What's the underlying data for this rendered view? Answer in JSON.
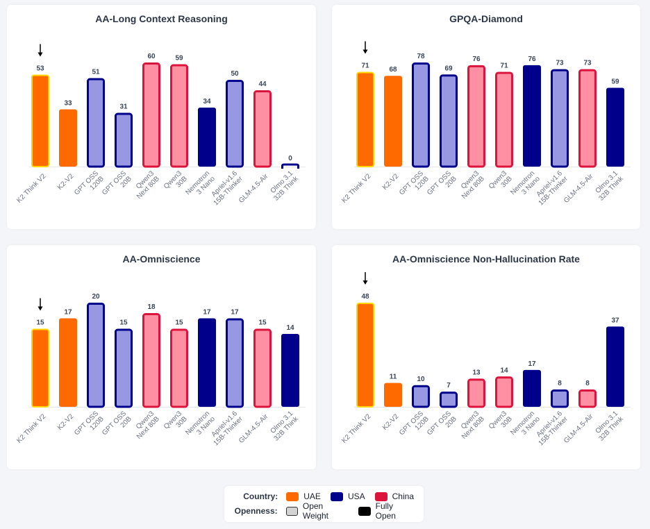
{
  "colors": {
    "UAE": "#ff6a00",
    "USA": "#00008b",
    "China": "#dc143c",
    "USA_light_fill": "#9898e2",
    "China_light_fill": "#ff8fa3",
    "highlight_border": "#ffd700",
    "axis": "#e5e7eb"
  },
  "models": [
    {
      "label": [
        "K2 Think V2"
      ],
      "country": "UAE",
      "openness": "Fully Open",
      "highlight": true
    },
    {
      "label": [
        "K2-V2"
      ],
      "country": "UAE",
      "openness": "Fully Open",
      "highlight": false
    },
    {
      "label": [
        "GPT OSS",
        "120B"
      ],
      "country": "USA",
      "openness": "Open Weight",
      "highlight": false
    },
    {
      "label": [
        "GPT OSS",
        "20B"
      ],
      "country": "USA",
      "openness": "Open Weight",
      "highlight": false
    },
    {
      "label": [
        "Qwen3",
        "Next 80B"
      ],
      "country": "China",
      "openness": "Open Weight",
      "highlight": false
    },
    {
      "label": [
        "Qwen3",
        "30B"
      ],
      "country": "China",
      "openness": "Open Weight",
      "highlight": false
    },
    {
      "label": [
        "Nemotron",
        "3 Nano"
      ],
      "country": "USA",
      "openness": "Fully Open",
      "highlight": false
    },
    {
      "label": [
        "Apriel-v1.6",
        "15B-Thinker"
      ],
      "country": "USA",
      "openness": "Open Weight",
      "highlight": false
    },
    {
      "label": [
        "GLM-4.5-Air"
      ],
      "country": "China",
      "openness": "Open Weight",
      "highlight": false
    },
    {
      "label": [
        "Olmo 3.1",
        "32B Think"
      ],
      "country": "USA",
      "openness": "Fully Open",
      "highlight": false
    }
  ],
  "chart_data": [
    {
      "type": "bar",
      "title": "AA-Long Context Reasoning",
      "categories": [
        "K2 Think V2",
        "K2-V2",
        "GPT OSS 120B",
        "GPT OSS 20B",
        "Qwen3 Next 80B",
        "Qwen3 30B",
        "Nemotron 3 Nano",
        "Apriel-v1.6 15B-Thinker",
        "GLM-4.5-Air",
        "Olmo 3.1 32B Think"
      ],
      "values": [
        53,
        33,
        51,
        31,
        60,
        59,
        34,
        50,
        44,
        0
      ],
      "xlabel": "",
      "ylabel": "",
      "ylim": [
        0,
        60
      ],
      "grid": false,
      "highlight_category": "K2 Think V2",
      "annotation": "down-arrow above K2 Think V2"
    },
    {
      "type": "bar",
      "title": "GPQA-Diamond",
      "categories": [
        "K2 Think V2",
        "K2-V2",
        "GPT OSS 120B",
        "GPT OSS 20B",
        "Qwen3 Next 80B",
        "Qwen3 30B",
        "Nemotron 3 Nano",
        "Apriel-v1.6 15B-Thinker",
        "GLM-4.5-Air",
        "Olmo 3.1 32B Think"
      ],
      "values": [
        71,
        68,
        78,
        69,
        76,
        71,
        76,
        73,
        73,
        59
      ],
      "xlabel": "",
      "ylabel": "",
      "ylim": [
        0,
        78
      ],
      "grid": false,
      "highlight_category": "K2 Think V2",
      "annotation": "down-arrow above K2 Think V2"
    },
    {
      "type": "bar",
      "title": "AA-Omniscience",
      "categories": [
        "K2 Think V2",
        "K2-V2",
        "GPT OSS 120B",
        "GPT OSS 20B",
        "Qwen3 Next 80B",
        "Qwen3 30B",
        "Nemotron 3 Nano",
        "Apriel-v1.6 15B-Thinker",
        "GLM-4.5-Air",
        "Olmo 3.1 32B Think"
      ],
      "values": [
        15,
        17,
        20,
        15,
        18,
        15,
        17,
        17,
        15,
        14
      ],
      "xlabel": "",
      "ylabel": "",
      "ylim": [
        0,
        20
      ],
      "grid": false,
      "highlight_category": "K2 Think V2",
      "annotation": "down-arrow above K2 Think V2"
    },
    {
      "type": "bar",
      "title": "AA-Omniscience Non-Hallucination Rate",
      "categories": [
        "K2 Think V2",
        "K2-V2",
        "GPT OSS 120B",
        "GPT OSS 20B",
        "Qwen3 Next 80B",
        "Qwen3 30B",
        "Nemotron 3 Nano",
        "Apriel-v1.6 15B-Thinker",
        "GLM-4.5-Air",
        "Olmo 3.1 32B Think"
      ],
      "values": [
        48,
        11,
        10,
        7,
        13,
        14,
        17,
        8,
        8,
        37
      ],
      "xlabel": "",
      "ylabel": "",
      "ylim": [
        0,
        48
      ],
      "grid": false,
      "highlight_category": "K2 Think V2",
      "annotation": "down-arrow above K2 Think V2"
    }
  ],
  "legend": {
    "placement": "bottom-center",
    "country_heading": "Country:",
    "openness_heading": "Openness:",
    "country_items": [
      {
        "label": "UAE",
        "color": "#ff6a00"
      },
      {
        "label": "USA",
        "color": "#00008b"
      },
      {
        "label": "China",
        "color": "#dc143c"
      }
    ],
    "openness_items": [
      {
        "label": "Open Weight",
        "style": "light fill with border"
      },
      {
        "label": "Fully Open",
        "style": "solid fill"
      }
    ]
  }
}
